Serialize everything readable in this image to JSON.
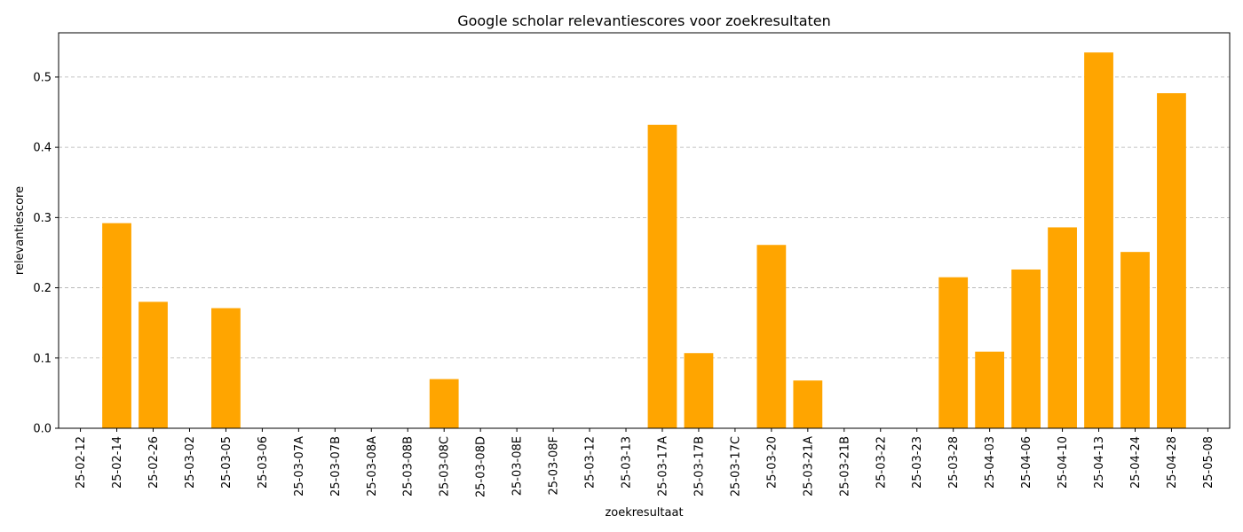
{
  "chart_data": {
    "type": "bar",
    "title": "Google scholar relevantiescores voor zoekresultaten",
    "xlabel": "zoekresultaat",
    "ylabel": "relevantiescore",
    "ylim": [
      0,
      0.563
    ],
    "yticks": [
      0.0,
      0.1,
      0.2,
      0.3,
      0.4,
      0.5
    ],
    "ytick_labels": [
      "0.0",
      "0.1",
      "0.2",
      "0.3",
      "0.4",
      "0.5"
    ],
    "grid": "y-dashed",
    "bar_color": "#ffa500",
    "categories": [
      "25-02-12",
      "25-02-14",
      "25-02-26",
      "25-03-02",
      "25-03-05",
      "25-03-06",
      "25-03-07A",
      "25-03-07B",
      "25-03-08A",
      "25-03-08B",
      "25-03-08C",
      "25-03-08D",
      "25-03-08E",
      "25-03-08F",
      "25-03-12",
      "25-03-13",
      "25-03-17A",
      "25-03-17B",
      "25-03-17C",
      "25-03-20",
      "25-03-21A",
      "25-03-21B",
      "25-03-22",
      "25-03-23",
      "25-03-28",
      "25-04-03",
      "25-04-06",
      "25-04-10",
      "25-04-13",
      "25-04-24",
      "25-04-28",
      "25-05-08"
    ],
    "values": [
      0,
      0.292,
      0.18,
      0,
      0.171,
      0,
      0,
      0,
      0,
      0,
      0.07,
      0,
      0,
      0,
      0,
      0,
      0.432,
      0.107,
      0,
      0.261,
      0.068,
      0,
      0,
      0,
      0.215,
      0.109,
      0.226,
      0.286,
      0.535,
      0.251,
      0.477,
      0
    ]
  }
}
